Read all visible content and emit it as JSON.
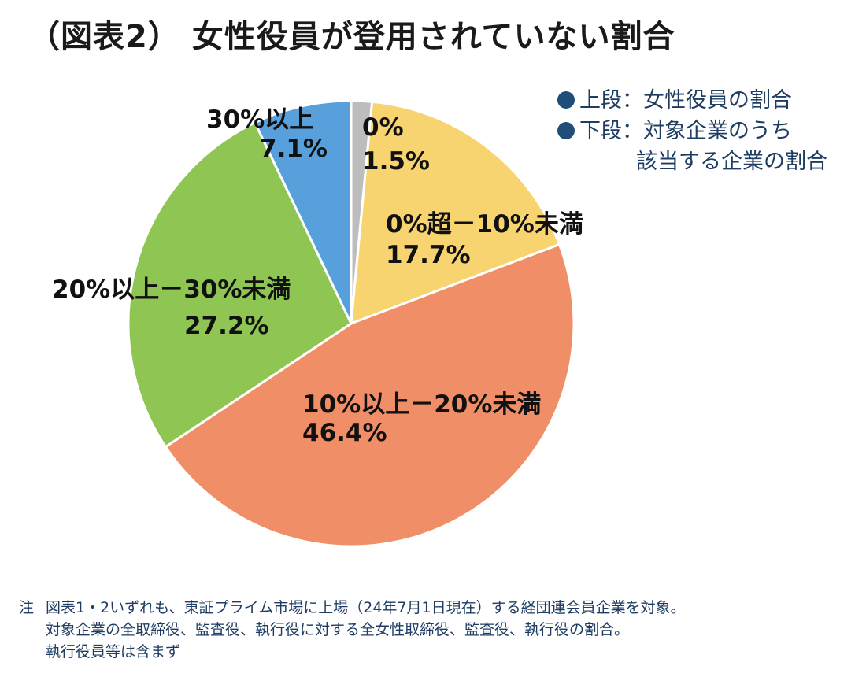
{
  "chart_data": {
    "type": "pie",
    "title": "（図表2） 女性役員が登用されていない割合",
    "start_angle_deg": 0,
    "direction": "clockwise",
    "slices": [
      {
        "name": "0%",
        "value": 1.5,
        "display": "1.5%",
        "color": "#bdbdbd"
      },
      {
        "name": "0%超－10%未満",
        "value": 17.7,
        "display": "17.7%",
        "color": "#f7d46f"
      },
      {
        "name": "10%以上－20%未満",
        "value": 46.4,
        "display": "46.4%",
        "color": "#f08f67"
      },
      {
        "name": "20%以上－30%未満",
        "value": 27.2,
        "display": "27.2%",
        "color": "#8fc553"
      },
      {
        "name": "30%以上",
        "value": 7.1,
        "display": "7.1%",
        "color": "#57a0dc"
      }
    ],
    "legend": [
      {
        "lines": [
          "上段：女性役員の割合"
        ],
        "color": "#1f4e79"
      },
      {
        "lines": [
          "下段：対象企業のうち",
          "該当する企業の割合"
        ],
        "color": "#1f4e79"
      }
    ],
    "legend_position": "top-right"
  },
  "note": {
    "prefix": "注",
    "lines": [
      "図表1・2いずれも、東証プライム市場に上場（24年7月1日現在）する経団連会員企業を対象。",
      "対象企業の全取締役、監査役、執行役に対する全女性取締役、監査役、執行役の割合。",
      "執行役員等は含まず"
    ]
  }
}
